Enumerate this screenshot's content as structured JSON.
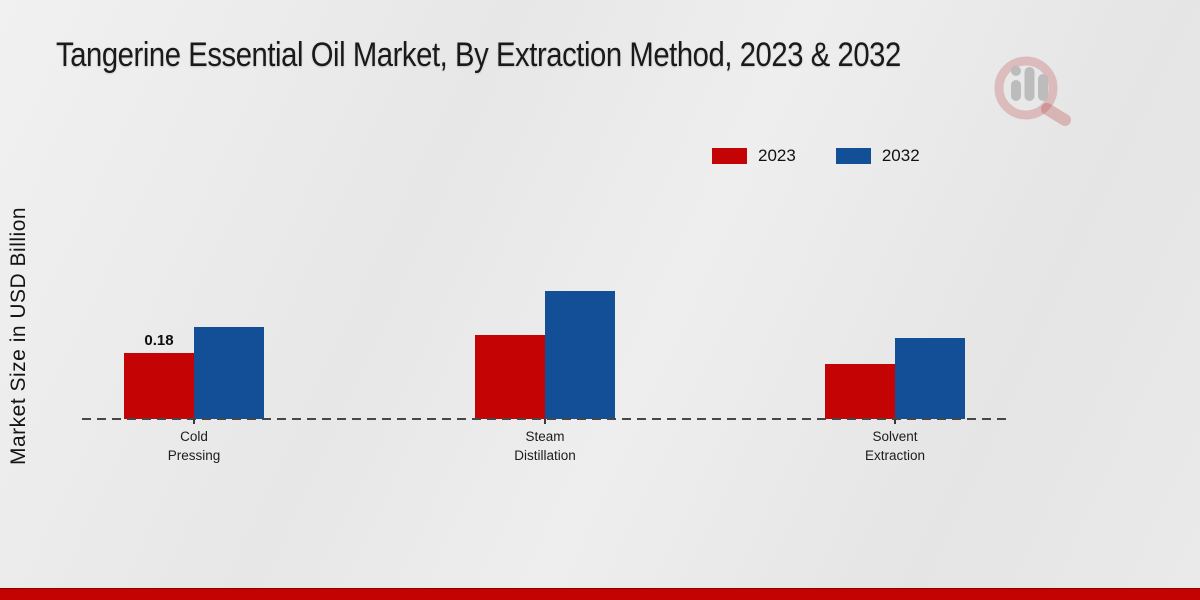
{
  "title": "Tangerine Essential Oil Market, By Extraction Method, 2023 & 2032",
  "y_axis_label": "Market Size in USD Billion",
  "legend": {
    "position": "top-right",
    "items": [
      {
        "label": "2023",
        "color": "#c40404"
      },
      {
        "label": "2032",
        "color": "#134f96"
      }
    ]
  },
  "chart_data": {
    "type": "bar",
    "title": "Tangerine Essential Oil Market, By Extraction Method, 2023 & 2032",
    "categories": [
      "Cold Pressing",
      "Steam Distillation",
      "Solvent Extraction"
    ],
    "series": [
      {
        "name": "2023",
        "color": "#c40404",
        "values": [
          0.18,
          0.23,
          0.15
        ]
      },
      {
        "name": "2032",
        "color": "#134f96",
        "values": [
          0.25,
          0.35,
          0.22
        ]
      }
    ],
    "data_labels": [
      {
        "series": "2023",
        "category": "Cold Pressing",
        "text": "0.18"
      }
    ],
    "xlabel": "",
    "ylabel": "Market Size in USD Billion",
    "ylim": [
      0,
      0.4
    ],
    "grid": false,
    "axis_style": "dashed-baseline-only",
    "legend_position": "top-right"
  },
  "colors": {
    "series_2023": "#c40404",
    "series_2032": "#134f96",
    "footer_band": "#c30202",
    "dash_line": "#474747",
    "background": "#eaeaea",
    "title_text": "#1a1a1a",
    "watermark_ring": "rgba(187,73,73,0.28)",
    "watermark_bars": "#b8b8b8"
  },
  "branding": {
    "watermark": "magnifier-bar-chart-logo"
  }
}
